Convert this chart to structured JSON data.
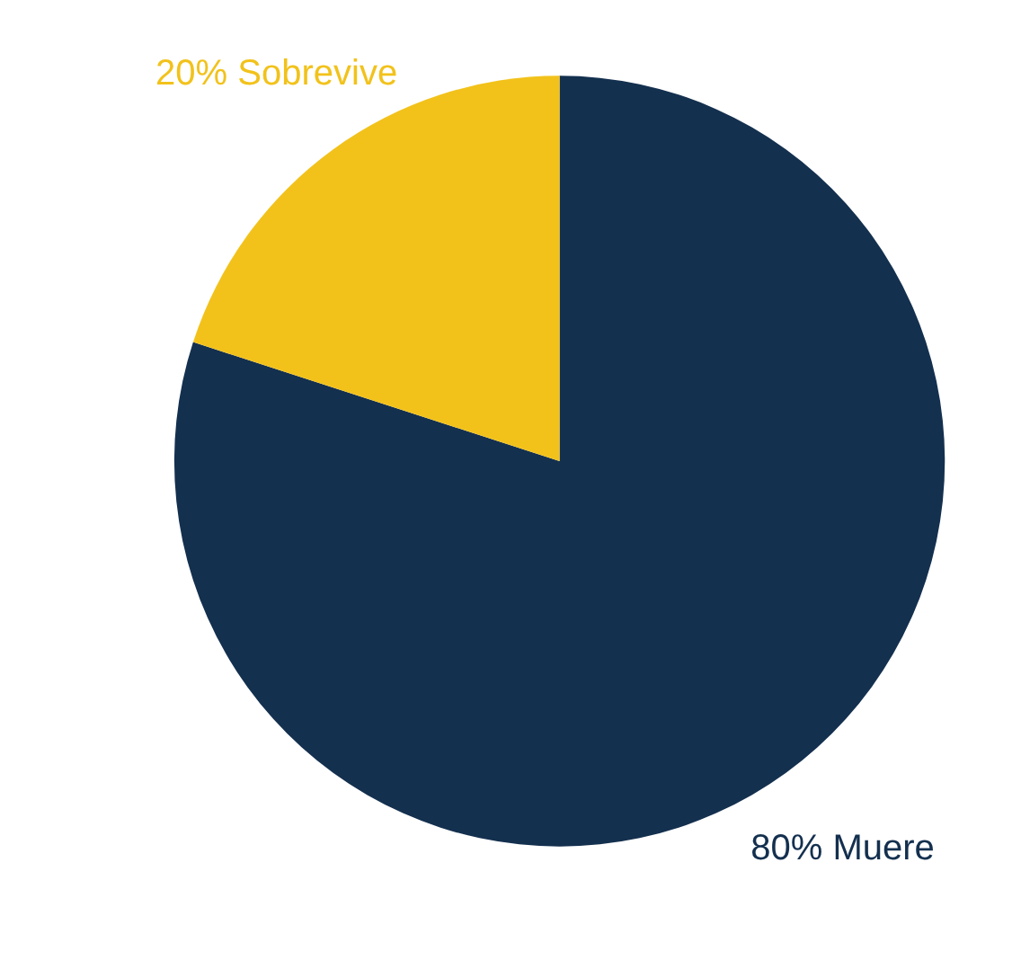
{
  "chart_data": {
    "type": "pie",
    "categories": [
      "80% Muere",
      "20% Sobrevive"
    ],
    "values": [
      80,
      20
    ],
    "colors": [
      "#14304f",
      "#f2c21b"
    ]
  }
}
